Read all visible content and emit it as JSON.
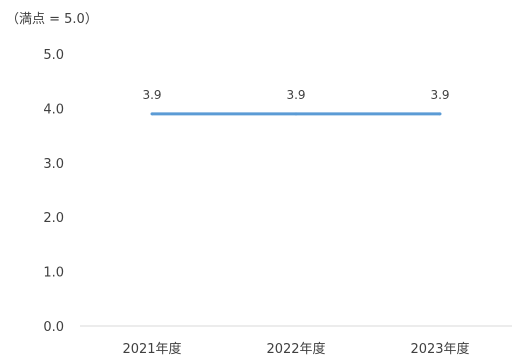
{
  "chart_data": {
    "type": "line",
    "unit_label": "（満点 = 5.0）",
    "categories": [
      "2021年度",
      "2022年度",
      "2023年度"
    ],
    "series": [
      {
        "values": [
          3.9,
          3.9,
          3.9
        ],
        "color": "#5B9BD5"
      }
    ],
    "data_labels": [
      "3.9",
      "3.9",
      "3.9"
    ],
    "y_ticks": [
      "0.0",
      "1.0",
      "2.0",
      "3.0",
      "4.0",
      "5.0"
    ],
    "ylim": [
      0,
      5
    ],
    "grid": false,
    "legend": "none",
    "axis_color": "#D9D9D9"
  }
}
